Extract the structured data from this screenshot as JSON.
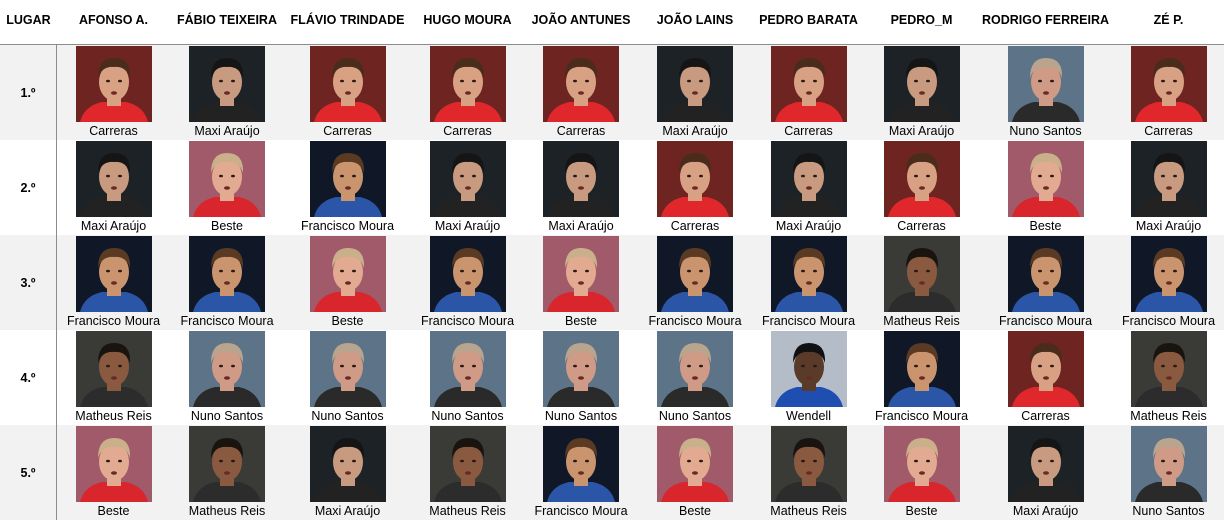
{
  "header": {
    "place_label": "LUGAR",
    "voters": [
      "AFONSO A.",
      "FÁBIO TEIXEIRA",
      "FLÁVIO TRINDADE",
      "HUGO MOURA",
      "JOÃO ANTUNES",
      "JOÃO LAINS",
      "PEDRO BARATA",
      "PEDRO_M",
      "RODRIGO FERREIRA",
      "ZÉ P."
    ]
  },
  "rows": [
    {
      "place": "1.º",
      "picks": [
        "Carreras",
        "Maxi Araújo",
        "Carreras",
        "Carreras",
        "Carreras",
        "Maxi Araújo",
        "Carreras",
        "Maxi Araújo",
        "Nuno Santos",
        "Carreras"
      ]
    },
    {
      "place": "2.º",
      "picks": [
        "Maxi Araújo",
        "Beste",
        "Francisco Moura",
        "Maxi Araújo",
        "Maxi Araújo",
        "Carreras",
        "Maxi Araújo",
        "Carreras",
        "Beste",
        "Maxi Araújo"
      ]
    },
    {
      "place": "3.º",
      "picks": [
        "Francisco Moura",
        "Francisco Moura",
        "Beste",
        "Francisco Moura",
        "Beste",
        "Francisco Moura",
        "Francisco Moura",
        "Matheus Reis",
        "Francisco Moura",
        "Francisco Moura"
      ]
    },
    {
      "place": "4.º",
      "picks": [
        "Matheus Reis",
        "Nuno Santos",
        "Nuno Santos",
        "Nuno Santos",
        "Nuno Santos",
        "Nuno Santos",
        "Wendell",
        "Francisco Moura",
        "Carreras",
        "Matheus Reis"
      ]
    },
    {
      "place": "5.º",
      "picks": [
        "Beste",
        "Matheus Reis",
        "Maxi Araújo",
        "Matheus Reis",
        "Francisco Moura",
        "Beste",
        "Matheus Reis",
        "Beste",
        "Maxi Araújo",
        "Nuno Santos"
      ]
    }
  ],
  "player_photo_colors": {
    "Carreras": {
      "bg": "#6e2420",
      "skin": "#d9a184",
      "hair": "#4a2c1c",
      "shirt": "#e0282c"
    },
    "Maxi Araújo": {
      "bg": "#1c2226",
      "skin": "#c89a80",
      "hair": "#151515",
      "shirt": "#222222"
    },
    "Francisco Moura": {
      "bg": "#101828",
      "skin": "#c9946e",
      "hair": "#5a3a22",
      "shirt": "#2b56a8"
    },
    "Beste": {
      "bg": "#a05a6a",
      "skin": "#e3aa92",
      "hair": "#c9b08a",
      "shirt": "#d8262c"
    },
    "Nuno Santos": {
      "bg": "#5d7488",
      "skin": "#cf9a86",
      "hair": "#b9a48e",
      "shirt": "#2a2a2a"
    },
    "Matheus Reis": {
      "bg": "#3a3a36",
      "skin": "#8a5a40",
      "hair": "#1a1410",
      "shirt": "#2c2c2c"
    },
    "Wendell": {
      "bg": "#b4bcc8",
      "skin": "#5a3a28",
      "hair": "#111111",
      "shirt": "#1e4fb0"
    }
  }
}
